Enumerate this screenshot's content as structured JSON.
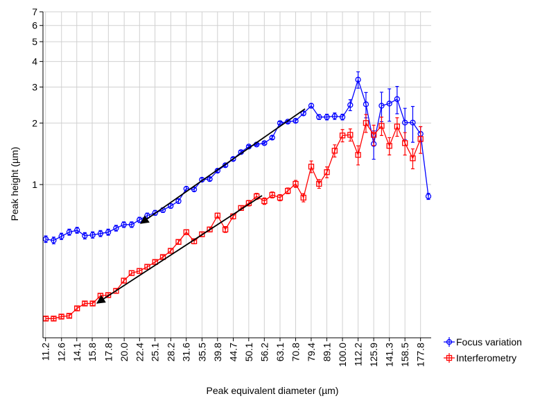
{
  "chart_data": {
    "type": "line",
    "xlabel": "Peak equivalent diameter (µm)",
    "ylabel": "Peak height (µm)",
    "xscale": "log",
    "yscale": "log",
    "xlim": [
      10.99,
      192.3
    ],
    "ylim": [
      0.178,
      7
    ],
    "xticks": [
      11.2,
      12.6,
      14.1,
      15.8,
      17.8,
      {
        "value": 20,
        "label": "20.0"
      },
      22.4,
      25.1,
      28.2,
      31.6,
      35.5,
      39.8,
      44.7,
      50.1,
      56.2,
      63.1,
      70.8,
      79.4,
      89.1,
      {
        "value": 100,
        "label": "100.0"
      },
      112.2,
      125.9,
      141.3,
      158.5,
      177.8
    ],
    "yticks": [
      1,
      2,
      3,
      4,
      5,
      6,
      7
    ],
    "grid": true,
    "legend": "outside-bottom-right",
    "x": [
      11.22,
      11.89,
      12.59,
      13.34,
      14.13,
      14.96,
      15.85,
      16.79,
      17.78,
      18.84,
      19.95,
      21.13,
      22.39,
      23.71,
      25.12,
      26.61,
      28.18,
      29.85,
      31.62,
      33.5,
      35.48,
      37.58,
      39.81,
      42.17,
      44.67,
      47.32,
      50.12,
      53.09,
      56.23,
      59.57,
      63.1,
      66.83,
      70.79,
      74.99,
      79.43,
      84.14,
      89.13,
      94.41,
      100,
      105.9,
      112.2,
      118.9,
      125.9,
      133.4,
      141.3,
      149.6,
      158.5,
      167.9,
      177.8,
      188.4
    ],
    "series": [
      {
        "name": "Focus variation",
        "color": "#0000ff",
        "marker": "circle",
        "values": [
          0.541,
          0.533,
          0.558,
          0.585,
          0.598,
          0.562,
          0.567,
          0.576,
          0.585,
          0.612,
          0.637,
          0.637,
          0.672,
          0.705,
          0.727,
          0.75,
          0.786,
          0.83,
          0.954,
          0.947,
          1.056,
          1.064,
          1.169,
          1.243,
          1.334,
          1.442,
          1.534,
          1.57,
          1.595,
          1.697,
          2.0,
          2.03,
          2.05,
          2.23,
          2.43,
          2.14,
          2.14,
          2.16,
          2.14,
          2.45,
          3.26,
          2.47,
          1.58,
          2.43,
          2.49,
          2.62,
          2.01,
          2.01,
          1.77,
          0.876
        ],
        "errors": [
          0.02,
          0.02,
          0.02,
          0.02,
          0.02,
          0.02,
          0.02,
          0.02,
          0.02,
          0.02,
          0.02,
          0.02,
          0.02,
          0.02,
          0.02,
          0.02,
          0.02,
          0.02,
          0.02,
          0.02,
          0.02,
          0.02,
          0.02,
          0.02,
          0.02,
          0.02,
          0.02,
          0.02,
          0.02,
          0.03,
          0.03,
          0.03,
          0.04,
          0.05,
          0.06,
          0.06,
          0.07,
          0.08,
          0.07,
          0.15,
          0.3,
          0.35,
          0.25,
          0.4,
          0.45,
          0.4,
          0.35,
          0.4,
          0.15,
          0.03
        ]
      },
      {
        "name": "Interferometry",
        "color": "#ff0000",
        "marker": "square",
        "values": [
          0.221,
          0.221,
          0.226,
          0.228,
          0.248,
          0.262,
          0.262,
          0.286,
          0.288,
          0.302,
          0.339,
          0.369,
          0.378,
          0.396,
          0.418,
          0.442,
          0.474,
          0.524,
          0.585,
          0.528,
          0.571,
          0.603,
          0.705,
          0.603,
          0.699,
          0.768,
          0.811,
          0.876,
          0.83,
          0.89,
          0.863,
          0.932,
          1.008,
          0.863,
          1.224,
          1.008,
          1.15,
          1.464,
          1.738,
          1.751,
          1.397,
          2.0,
          1.751,
          1.937,
          1.546,
          1.922,
          1.595,
          1.344,
          1.671,
          null
        ],
        "errors": [
          0.005,
          0.005,
          0.005,
          0.005,
          0.006,
          0.006,
          0.006,
          0.007,
          0.007,
          0.008,
          0.009,
          0.01,
          0.01,
          0.01,
          0.01,
          0.01,
          0.012,
          0.013,
          0.015,
          0.015,
          0.015,
          0.016,
          0.02,
          0.02,
          0.02,
          0.02,
          0.025,
          0.03,
          0.03,
          0.03,
          0.03,
          0.03,
          0.04,
          0.04,
          0.08,
          0.05,
          0.07,
          0.1,
          0.12,
          0.12,
          0.15,
          0.2,
          0.2,
          0.2,
          0.15,
          0.2,
          0.2,
          0.15,
          0.25,
          null
        ]
      }
    ]
  }
}
